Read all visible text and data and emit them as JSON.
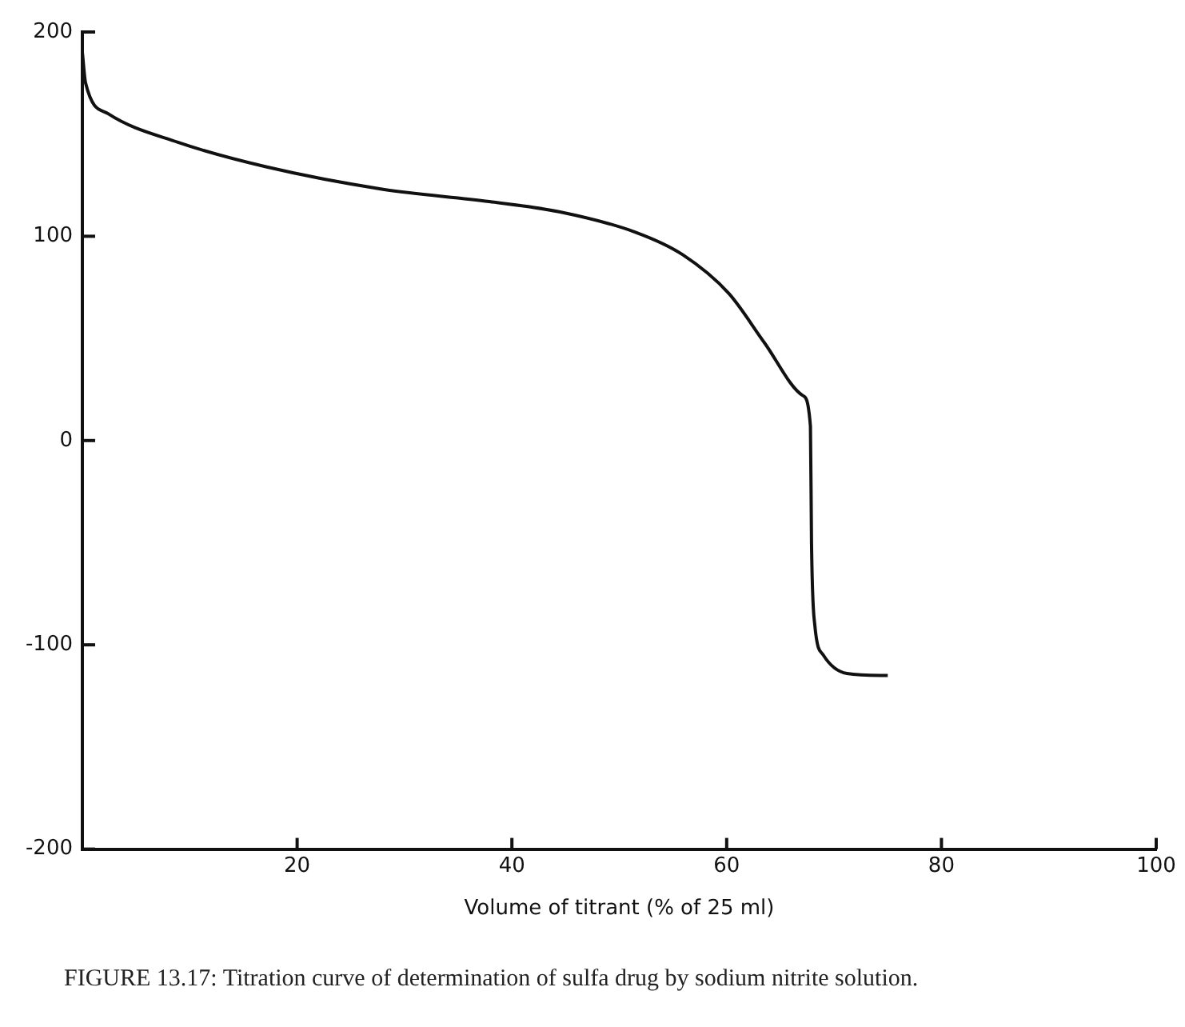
{
  "chart_data": {
    "type": "line",
    "xlabel": "Volume of titrant (% of 25 ml)",
    "annotations": [
      "FIGURE 13.17: Titration curve of determination of sulfa drug by sodium nitrite solution."
    ],
    "series": [
      {
        "color": "#111111",
        "x": [
          0,
          0.3,
          2.4,
          8.9,
          17.1,
          28,
          37.9,
          44.4,
          51.5,
          55.9,
          60.2,
          63.5,
          67.1,
          67.8,
          67.9,
          68.2,
          69,
          71.2,
          75
        ],
        "values": [
          190,
          175,
          160,
          146,
          134,
          123,
          117,
          112,
          102,
          91,
          72,
          48,
          22,
          7,
          -50,
          -90,
          -105,
          -114,
          -115
        ]
      }
    ],
    "xlim": [
      0,
      100
    ],
    "xticks": [
      20,
      40,
      60,
      80,
      100
    ],
    "ylim": [
      -200,
      200
    ],
    "yticks": [
      -200,
      -100,
      0,
      100,
      200
    ],
    "grid": false,
    "legend": false,
    "marker": "none",
    "line_style": "solid"
  }
}
